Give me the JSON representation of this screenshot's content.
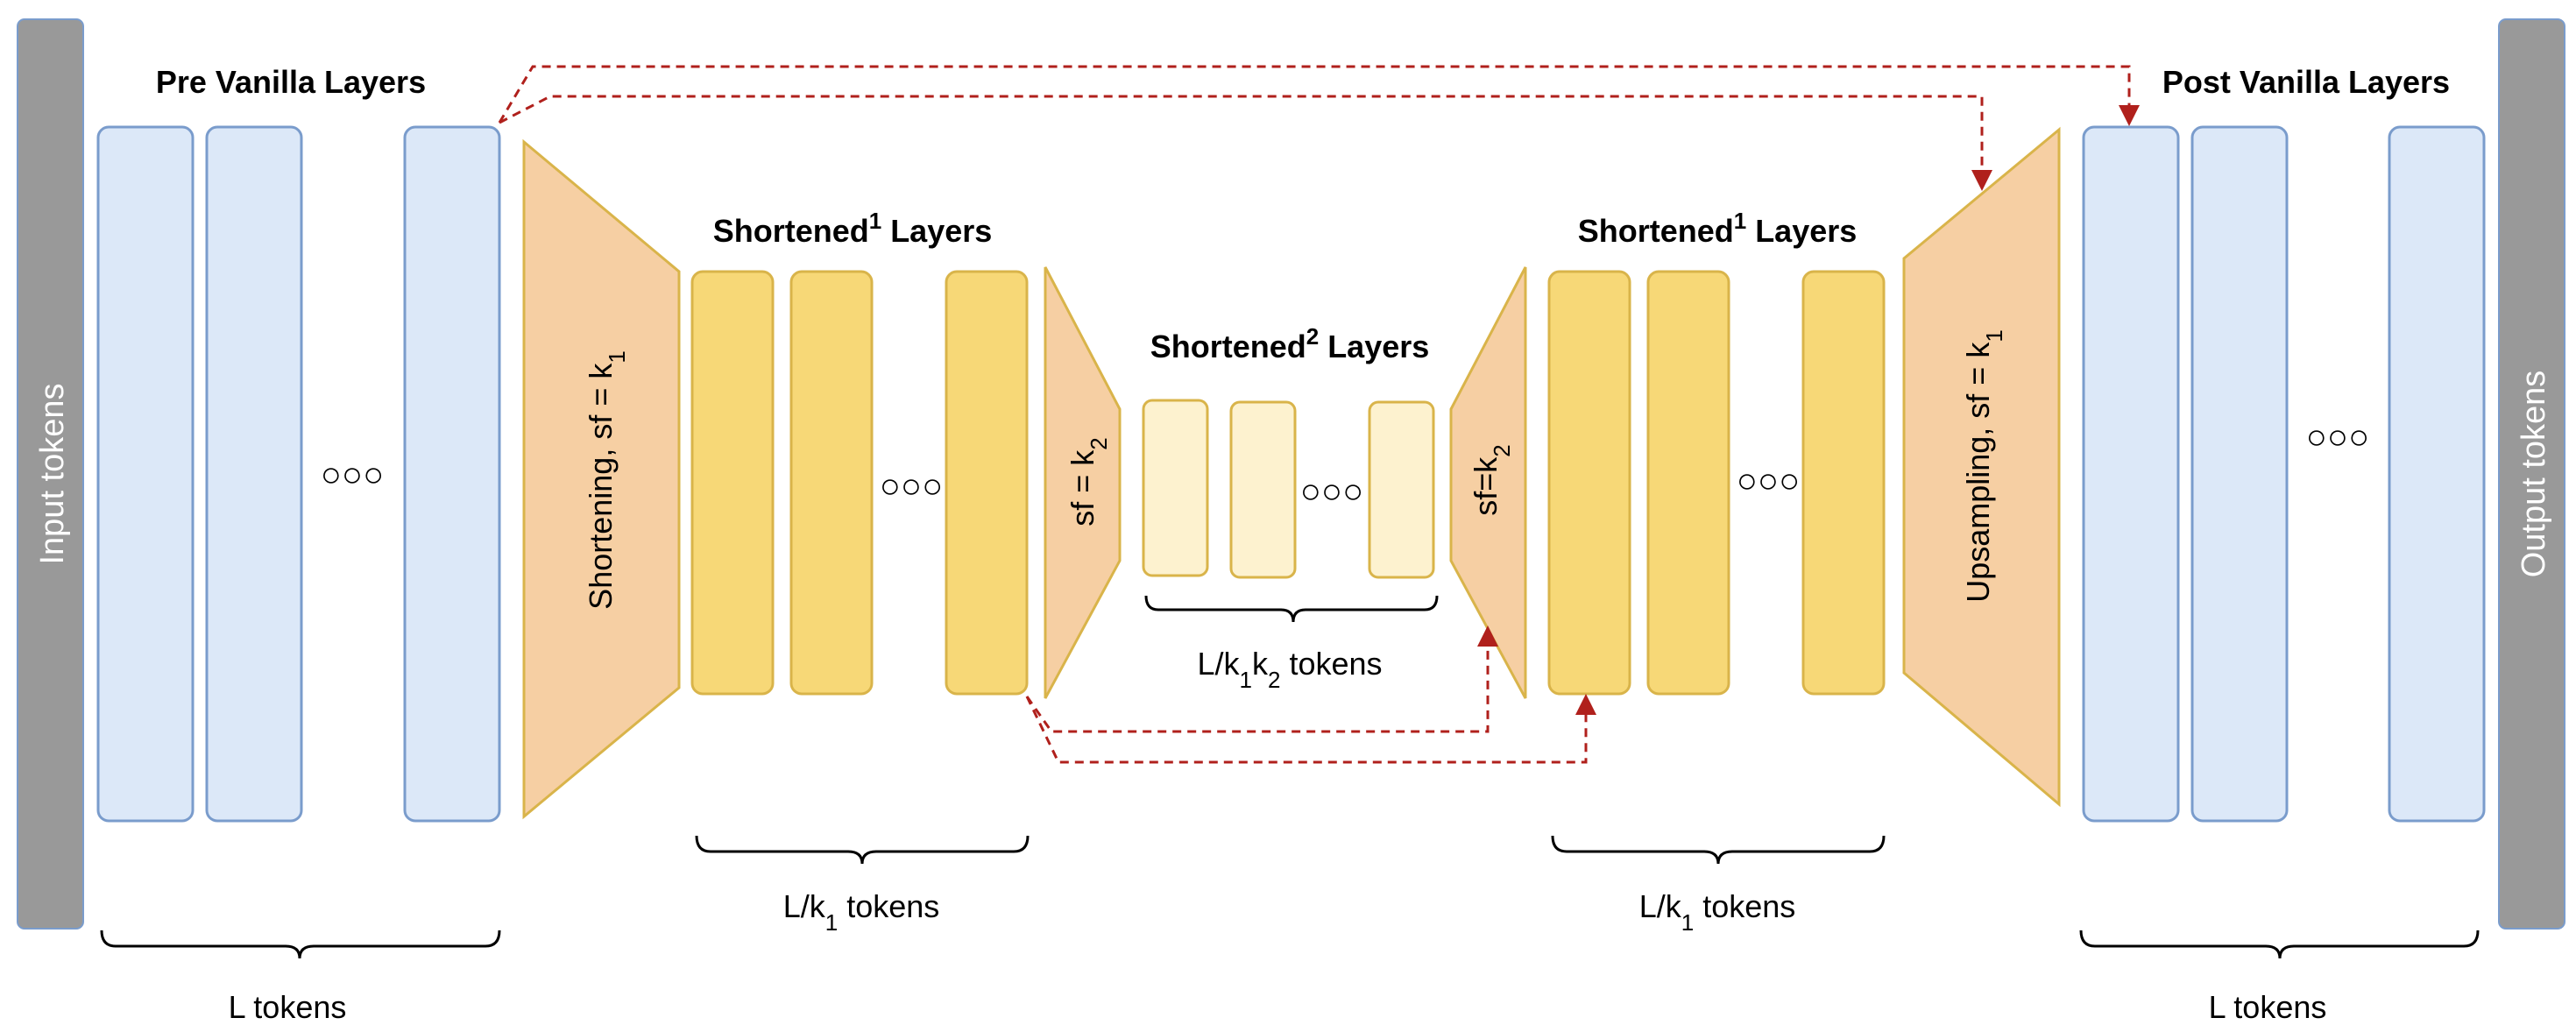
{
  "colors": {
    "side_bar": "#999999",
    "vanilla_fill": "#dce8f8",
    "vanilla_stroke": "#7a9ccc",
    "short1_fill": "#f7d877",
    "short1_stroke": "#d9b44a",
    "short2_fill": "#fdf2cf",
    "short2_stroke": "#d9b44a",
    "trap_fill": "#f6cfa3",
    "trap_stroke": "#d9b44a",
    "arrow": "#b0201c"
  },
  "side": {
    "input": "Input tokens",
    "output": "Output tokens"
  },
  "titles": {
    "pre_vanilla": "Pre Vanilla Layers",
    "post_vanilla": "Post Vanilla Layers",
    "short1_left_main": "Shortened",
    "short1_left_sup": "1",
    "short1_left_tail": " Layers",
    "short2_main": "Shortened",
    "short2_sup": "2",
    "short2_tail": " Layers",
    "short1_right_main": "Shortened",
    "short1_right_sup": "1",
    "short1_right_tail": " Layers"
  },
  "blocks": {
    "shortening": {
      "main": "Shortening, sf = k",
      "sub": "1"
    },
    "sf_k2_down": {
      "main": "sf = k",
      "sub": "2"
    },
    "sf_k2_up": {
      "main": "sf=k",
      "sub": "2"
    },
    "upsampling": {
      "main": "Upsampling, sf = k",
      "sub": "1"
    }
  },
  "ellipsis": {
    "large": "○○○",
    "small": "○○○"
  },
  "token_labels": {
    "l_left": "L tokens",
    "l_right": "L tokens",
    "lk1_left_main": "L/k",
    "lk1_left_sub": "1",
    "lk1_left_tail": " tokens",
    "lk1_right_main": "L/k",
    "lk1_right_sub": "1",
    "lk1_right_tail": " tokens",
    "lk1k2_a": "L/k",
    "lk1k2_sub1": "1",
    "lk1k2_b": "k",
    "lk1k2_sub2": "2",
    "lk1k2_tail": " tokens"
  }
}
